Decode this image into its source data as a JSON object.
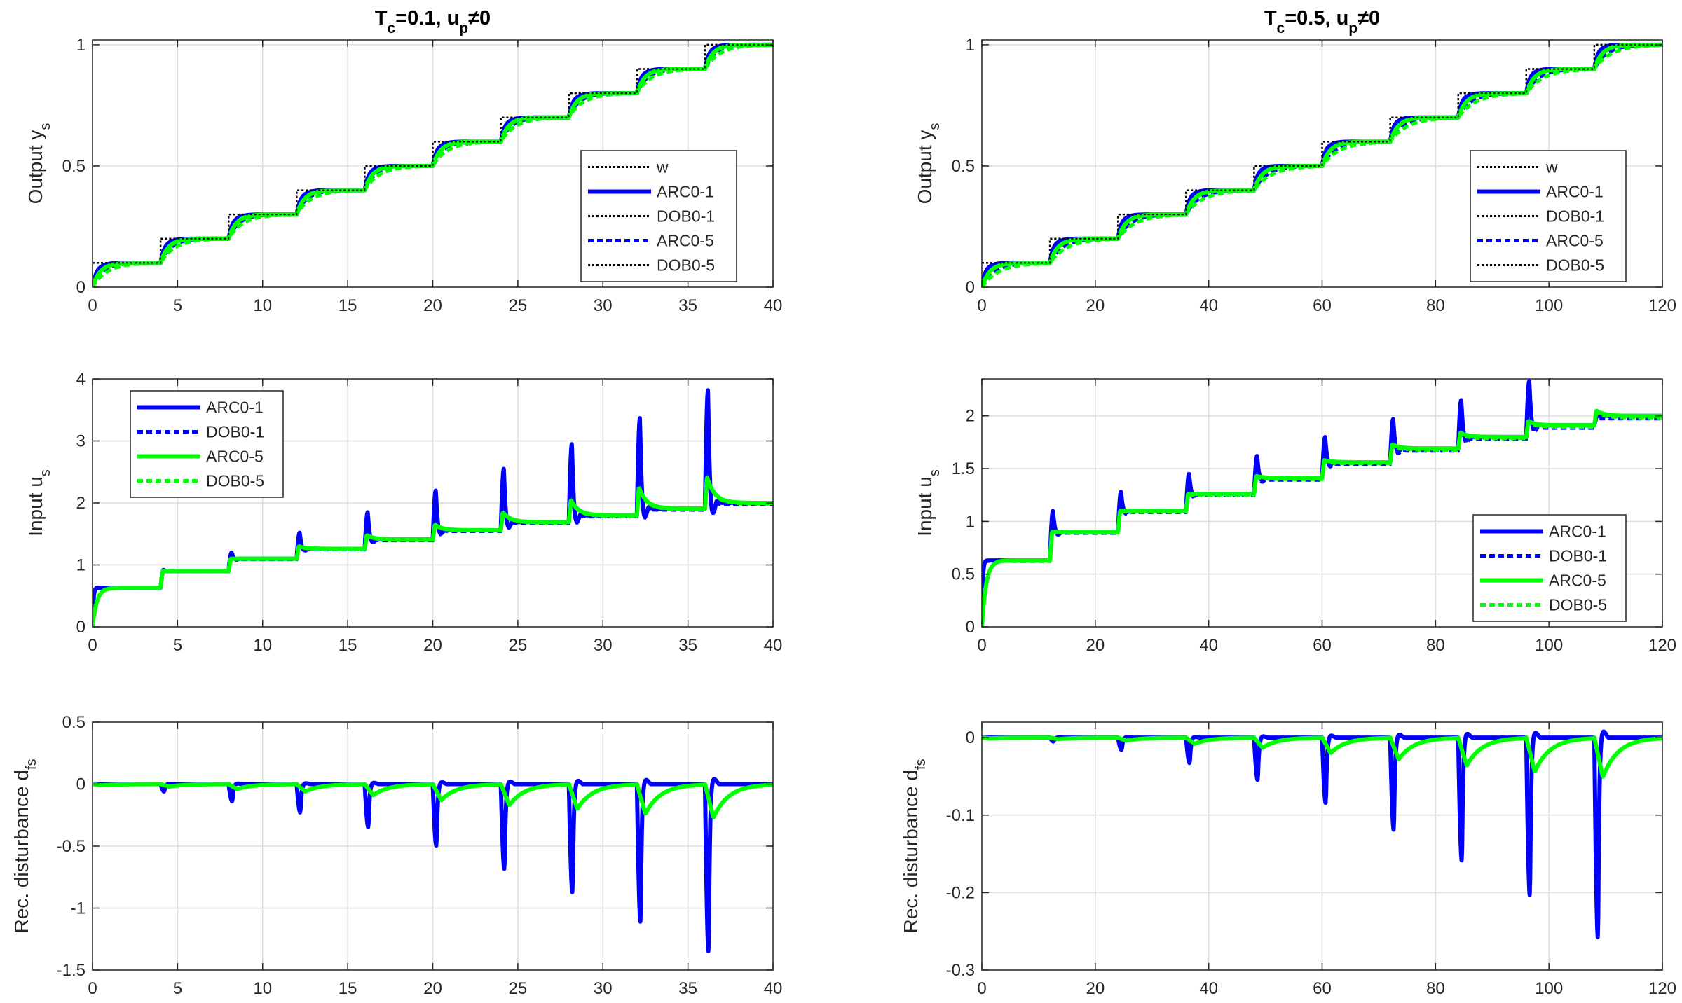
{
  "colors": {
    "blue": "#0000ff",
    "green": "#00ff00",
    "black": "#000000",
    "grid": "#dedede",
    "axis": "#262626"
  },
  "chart_data": [
    {
      "type": "line",
      "id": "p1",
      "column": 0,
      "row": 0,
      "variant": "output",
      "title_main": "T",
      "title_sub": "c",
      "title_rest": "=0.1, u",
      "title_sub2": "p",
      "title_end": "≠0",
      "ylabel_main": "Output y",
      "ylabel_sub": "s",
      "xlim": [
        0,
        40
      ],
      "ylim": [
        0,
        1.02
      ],
      "xticks": [
        0,
        5,
        10,
        15,
        20,
        25,
        30,
        35,
        40
      ],
      "xtick_labels": [
        "0",
        "5",
        "10",
        "15",
        "20",
        "25",
        "30",
        "35",
        "40"
      ],
      "yticks": [
        0,
        0.5,
        1
      ],
      "ytick_labels": [
        "0",
        "0.5",
        "1"
      ],
      "step_period": 4,
      "steps": 10,
      "step_size": 0.1,
      "time_constants": [
        0.3,
        0.45,
        0.6,
        0.85
      ],
      "legend": [
        "w",
        "ARC0-1",
        "DOB0-1",
        "ARC0-5",
        "DOB0-5"
      ],
      "legend_position": "lower-right"
    },
    {
      "type": "line",
      "id": "p2",
      "column": 1,
      "row": 0,
      "variant": "output",
      "title_main": "T",
      "title_sub": "c",
      "title_rest": "=0.5, u",
      "title_sub2": "p",
      "title_end": "≠0",
      "ylabel_main": "Output y",
      "ylabel_sub": "s",
      "xlim": [
        0,
        120
      ],
      "ylim": [
        0,
        1.02
      ],
      "xticks": [
        0,
        20,
        40,
        60,
        80,
        100,
        120
      ],
      "xtick_labels": [
        "0",
        "20",
        "40",
        "60",
        "80",
        "100",
        "120"
      ],
      "yticks": [
        0,
        0.5,
        1
      ],
      "ytick_labels": [
        "0",
        "0.5",
        "1"
      ],
      "step_period": 12,
      "steps": 10,
      "step_size": 0.1,
      "time_constants": [
        0.8,
        1.4,
        2.2,
        3.0
      ],
      "legend": [
        "w",
        "ARC0-1",
        "DOB0-1",
        "ARC0-5",
        "DOB0-5"
      ],
      "legend_position": "lower-right"
    },
    {
      "type": "line",
      "id": "p3",
      "column": 0,
      "row": 1,
      "variant": "input",
      "ylabel_main": "Input u",
      "ylabel_sub": "s",
      "xlim": [
        0,
        40
      ],
      "ylim": [
        0,
        4
      ],
      "xticks": [
        0,
        5,
        10,
        15,
        20,
        25,
        30,
        35,
        40
      ],
      "xtick_labels": [
        "0",
        "5",
        "10",
        "15",
        "20",
        "25",
        "30",
        "35",
        "40"
      ],
      "yticks": [
        0,
        1,
        2,
        3,
        4
      ],
      "ytick_labels": [
        "0",
        "1",
        "2",
        "3",
        "4"
      ],
      "step_period": 4,
      "levels": [
        0.63,
        0.9,
        1.1,
        1.26,
        1.41,
        1.56,
        1.69,
        1.8,
        1.91,
        2.0
      ],
      "spikes_blue": [
        0.92,
        1.2,
        1.52,
        1.85,
        2.2,
        2.55,
        2.95,
        3.37,
        3.82
      ],
      "spikes_green": [
        0.63,
        0.9,
        1.1,
        1.3,
        1.48,
        1.65,
        1.85,
        2.05,
        2.25,
        2.42
      ],
      "legend": [
        "ARC0-1",
        "DOB0-1",
        "ARC0-5",
        "DOB0-5"
      ],
      "legend_position": "upper-left"
    },
    {
      "type": "line",
      "id": "p4",
      "column": 1,
      "row": 1,
      "variant": "input",
      "ylabel_main": "Input u",
      "ylabel_sub": "s",
      "xlim": [
        0,
        120
      ],
      "ylim": [
        0,
        2.35
      ],
      "xticks": [
        0,
        20,
        40,
        60,
        80,
        100,
        120
      ],
      "xtick_labels": [
        "0",
        "20",
        "40",
        "60",
        "80",
        "100",
        "120"
      ],
      "yticks": [
        0,
        0.5,
        1,
        1.5,
        2
      ],
      "ytick_labels": [
        "0",
        "0.5",
        "1",
        "1.5",
        "2"
      ],
      "step_period": 12,
      "levels": [
        0.63,
        0.9,
        1.1,
        1.26,
        1.41,
        1.56,
        1.69,
        1.8,
        1.91,
        2.0
      ],
      "spikes_blue": [
        1.1,
        1.28,
        1.45,
        1.62,
        1.8,
        1.97,
        2.15,
        2.33
      ],
      "spikes_green": [
        0.63,
        0.9,
        1.1,
        1.26,
        1.43,
        1.58,
        1.73,
        1.84,
        1.95,
        2.05
      ],
      "legend": [
        "ARC0-1",
        "DOB0-1",
        "ARC0-5",
        "DOB0-5"
      ],
      "legend_position": "lower-right"
    },
    {
      "type": "line",
      "id": "p5",
      "column": 0,
      "row": 2,
      "variant": "disturbance",
      "ylabel_main": "Rec. disturbance d",
      "ylabel_sub": "fs",
      "xlim": [
        0,
        40
      ],
      "ylim": [
        -1.5,
        0.5
      ],
      "xticks": [
        0,
        5,
        10,
        15,
        20,
        25,
        30,
        35,
        40
      ],
      "xtick_labels": [
        "0",
        "5",
        "10",
        "15",
        "20",
        "25",
        "30",
        "35",
        "40"
      ],
      "yticks": [
        -1.5,
        -1,
        -0.5,
        0,
        0.5
      ],
      "ytick_labels": [
        "-1.5",
        "-1",
        "-0.5",
        "0",
        "0.5"
      ],
      "step_period": 4,
      "dips_blue": [
        -0.06,
        -0.14,
        -0.23,
        -0.35,
        -0.5,
        -0.69,
        -0.88,
        -1.12,
        -1.36
      ],
      "dips_green": [
        -0.01,
        -0.02,
        -0.04,
        -0.06,
        -0.09,
        -0.13,
        -0.17,
        -0.2,
        -0.24,
        -0.27
      ]
    },
    {
      "type": "line",
      "id": "p6",
      "column": 1,
      "row": 2,
      "variant": "disturbance",
      "ylabel_main": "Rec. disturbance d",
      "ylabel_sub": "fs",
      "xlim": [
        0,
        120
      ],
      "ylim": [
        -0.3,
        0.02
      ],
      "xticks": [
        0,
        20,
        40,
        60,
        80,
        100,
        120
      ],
      "xtick_labels": [
        "0",
        "20",
        "40",
        "60",
        "80",
        "100",
        "120"
      ],
      "yticks": [
        -0.3,
        -0.2,
        -0.1,
        0
      ],
      "ytick_labels": [
        "-0.3",
        "-0.2",
        "-0.1",
        "0"
      ],
      "step_period": 12,
      "dips_blue": [
        -0.005,
        -0.016,
        -0.033,
        -0.055,
        -0.085,
        -0.12,
        -0.16,
        -0.205,
        -0.26
      ],
      "dips_green": [
        -0.001,
        -0.002,
        -0.004,
        -0.008,
        -0.013,
        -0.02,
        -0.028,
        -0.036,
        -0.044,
        -0.051
      ]
    }
  ]
}
